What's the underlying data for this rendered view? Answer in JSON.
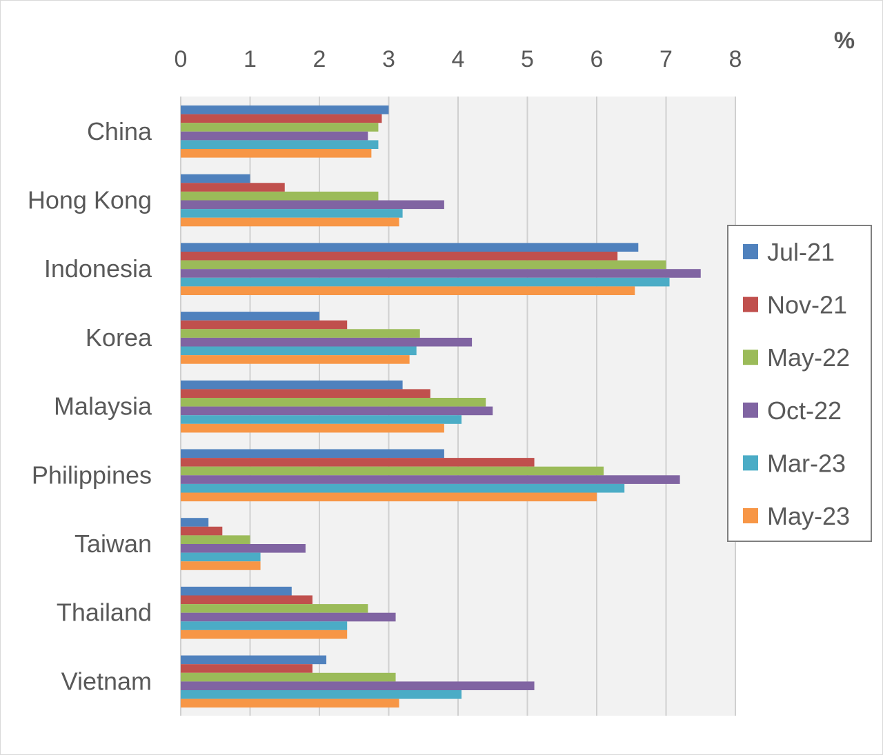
{
  "chart_data": {
    "type": "bar",
    "orientation": "horizontal",
    "unit": "%",
    "categories": [
      "China",
      "Hong Kong",
      "Indonesia",
      "Korea",
      "Malaysia",
      "Philippines",
      "Taiwan",
      "Thailand",
      "Vietnam"
    ],
    "xticks": [
      "0",
      "1",
      "2",
      "3",
      "4",
      "5",
      "6",
      "7",
      "8"
    ],
    "xlim": [
      0,
      8
    ],
    "grid": true,
    "legend_position": "right",
    "series": [
      {
        "name": "Jul-21",
        "color": "#4f81bd",
        "values": [
          3.0,
          1.0,
          6.6,
          2.0,
          3.2,
          3.8,
          0.4,
          1.6,
          2.1
        ]
      },
      {
        "name": "Nov-21",
        "color": "#c0504d",
        "values": [
          2.9,
          1.5,
          6.3,
          2.4,
          3.6,
          5.1,
          0.6,
          1.9,
          1.9
        ]
      },
      {
        "name": "May-22",
        "color": "#9bbb59",
        "values": [
          2.85,
          2.85,
          7.0,
          3.45,
          4.4,
          6.1,
          1.0,
          2.7,
          3.1
        ]
      },
      {
        "name": "Oct-22",
        "color": "#8064a2",
        "values": [
          2.7,
          3.8,
          7.5,
          4.2,
          4.5,
          7.2,
          1.8,
          3.1,
          5.1
        ]
      },
      {
        "name": "Mar-23",
        "color": "#4bacc6",
        "values": [
          2.85,
          3.2,
          7.05,
          3.4,
          4.05,
          6.4,
          1.15,
          2.4,
          4.05
        ]
      },
      {
        "name": "May-23",
        "color": "#f79646",
        "values": [
          2.75,
          3.15,
          6.55,
          3.3,
          3.8,
          6.0,
          1.15,
          2.4,
          3.15
        ]
      }
    ]
  }
}
